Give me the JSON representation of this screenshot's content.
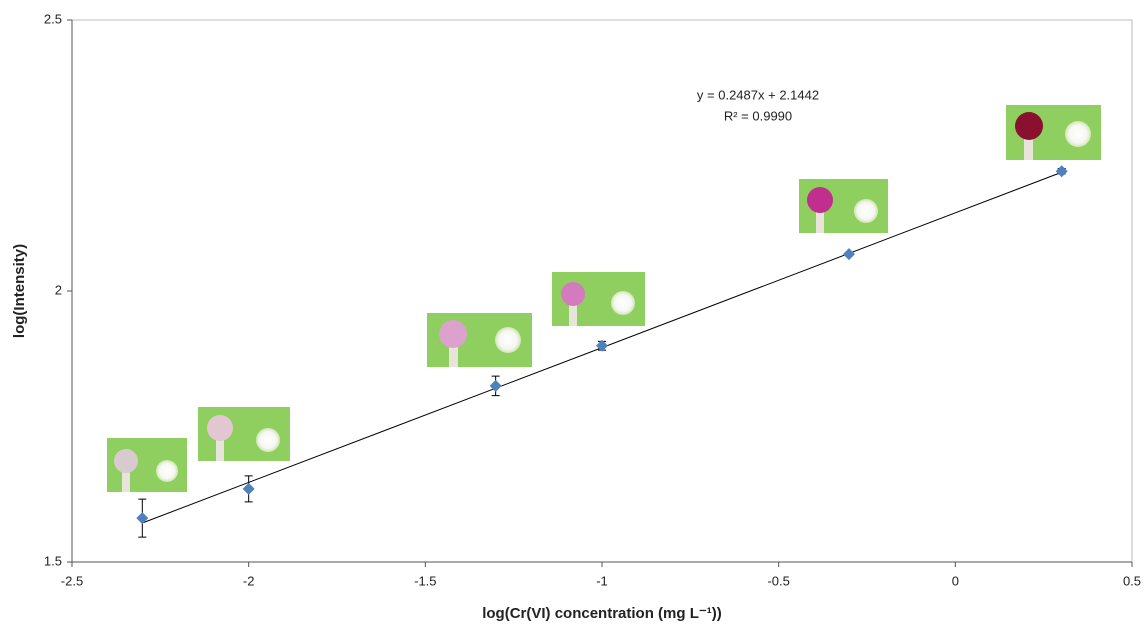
{
  "chart_data": {
    "type": "scatter",
    "xlabel": "log(Cr(VI) concentration (mg L⁻¹))",
    "ylabel": "log(Intensity)",
    "xlim": [
      -2.5,
      0.5
    ],
    "xticks": [
      -2.5,
      -2,
      -1.5,
      -1,
      -0.5,
      0,
      0.5
    ],
    "ylim": [
      1.5,
      2.5
    ],
    "yticks": [
      1.5,
      2,
      2.5
    ],
    "grid": false,
    "series": [
      {
        "color": "#4f81bd",
        "x": [
          -2.301,
          -2,
          -1.301,
          -1,
          -0.301,
          0.301
        ],
        "y": [
          1.581,
          1.635,
          1.825,
          1.899,
          2.068,
          2.221
        ],
        "errors": [
          0.035,
          0.024,
          0.018,
          0.008,
          0.003,
          0.005
        ]
      }
    ],
    "trendline": {
      "slope": 0.2487,
      "intercept": 2.1442,
      "equation": "y = 0.2487x + 2.1442",
      "r2_label": "R² = 0.9990",
      "color": "#000000"
    }
  }
}
